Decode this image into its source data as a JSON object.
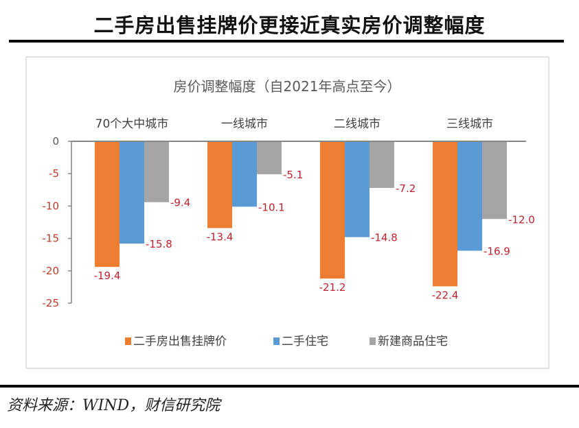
{
  "headline": "二手房出售挂牌价更接近真实房价调整幅度",
  "source": "资料来源：WIND，财信研究院",
  "colors": {
    "listing": "#ED7D31",
    "secondhand": "#5B9BD5",
    "new": "#A5A5A5",
    "axis": "#868686",
    "data_label": "#C0202B"
  },
  "chart_data": {
    "type": "bar",
    "title": "房价调整幅度（自2021年高点至今）",
    "xlabel": "",
    "ylabel": "",
    "categories": [
      "70个大中城市",
      "一线城市",
      "二线城市",
      "三线城市"
    ],
    "series": [
      {
        "name": "二手房出售挂牌价",
        "color": "#ED7D31",
        "values": [
          -19.4,
          -13.4,
          -21.2,
          -22.4
        ],
        "labels": [
          "-19.4",
          "-13.4",
          "-21.2",
          "-22.4"
        ]
      },
      {
        "name": "二手住宅",
        "color": "#5B9BD5",
        "values": [
          -15.8,
          -10.1,
          -14.8,
          -16.9
        ],
        "labels": [
          "-15.8",
          "-10.1",
          "-14.8",
          "-16.9"
        ]
      },
      {
        "name": "新建商品住宅",
        "color": "#A5A5A5",
        "values": [
          -9.4,
          -5.1,
          -7.2,
          -12.0
        ],
        "labels": [
          "-9.4",
          "-5.1",
          "-7.2",
          "-12.0"
        ]
      }
    ],
    "ylim": [
      -25,
      0
    ],
    "yticks": [
      0,
      -5,
      -10,
      -15,
      -20,
      -25
    ],
    "ytick_labels": [
      "0",
      "-5",
      "-10",
      "-15",
      "-20",
      "-25"
    ],
    "grid": false,
    "legend": "bottom",
    "category_labels_position": "top"
  }
}
